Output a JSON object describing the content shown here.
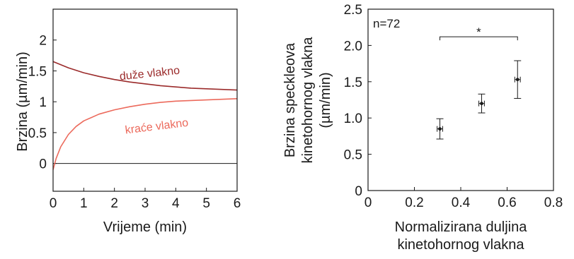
{
  "chart_data": [
    {
      "type": "line",
      "xlabel": "Vrijeme (min)",
      "ylabel": "Brzina (µm/min)",
      "xlim": [
        0,
        6
      ],
      "ylim": [
        -0.45,
        2.5
      ],
      "xticks": [
        "0",
        "1",
        "2",
        "3",
        "4",
        "5",
        "6"
      ],
      "xtick_values": [
        0,
        1,
        2,
        3,
        4,
        5,
        6
      ],
      "yticks": [
        "0",
        "0.5",
        "1",
        "1.5",
        "2"
      ],
      "ytick_values": [
        0,
        0.5,
        1,
        1.5,
        2
      ],
      "zero_line": true,
      "grid": false,
      "series": [
        {
          "name": "duže vlakno",
          "color": "#9b2b2b",
          "x": [
            0,
            0.5,
            1,
            1.5,
            2,
            2.5,
            3,
            3.5,
            4,
            4.5,
            5,
            5.5,
            6
          ],
          "values": [
            1.65,
            1.55,
            1.47,
            1.41,
            1.36,
            1.32,
            1.29,
            1.26,
            1.24,
            1.22,
            1.21,
            1.2,
            1.19
          ]
        },
        {
          "name": "kraće vlakno",
          "color": "#ec6a5c",
          "x": [
            0,
            0.1,
            0.25,
            0.5,
            0.75,
            1,
            1.5,
            2,
            2.5,
            3,
            3.5,
            4,
            4.5,
            5,
            5.5,
            6
          ],
          "values": [
            -0.1,
            0.08,
            0.27,
            0.47,
            0.6,
            0.69,
            0.8,
            0.87,
            0.92,
            0.96,
            0.99,
            1.01,
            1.02,
            1.03,
            1.04,
            1.05
          ]
        }
      ]
    },
    {
      "type": "scatter",
      "xlabel": "Normalizirana duljina kinetohornog vlakna",
      "xlabel_lines": [
        "Normalizirana duljina",
        "kinetohornog vlakna"
      ],
      "ylabel": "Brzina speckleova kinetohornog vlakna (µm/min)",
      "ylabel_lines": [
        "Brzina speckleova",
        "kinetohornog vlakna",
        "(µm/min)"
      ],
      "xlim": [
        0,
        0.8
      ],
      "ylim": [
        0,
        2.5
      ],
      "xticks": [
        "0",
        "0.2",
        "0.4",
        "0.6",
        "0.8"
      ],
      "xtick_values": [
        0,
        0.2,
        0.4,
        0.6,
        0.8
      ],
      "yticks": [
        "0",
        "0.5",
        "1.0",
        "1.5",
        "2.0",
        "2.5"
      ],
      "ytick_values": [
        0,
        0.5,
        1.0,
        1.5,
        2.0,
        2.5
      ],
      "grid": false,
      "annotation": "n=72",
      "significance": {
        "label": "*",
        "x1": 0.31,
        "x2": 0.645,
        "y": 2.12
      },
      "points": [
        {
          "x": 0.31,
          "y": 0.85,
          "yerr": 0.14,
          "xerr": 0.012
        },
        {
          "x": 0.49,
          "y": 1.2,
          "yerr": 0.13,
          "xerr": 0.012
        },
        {
          "x": 0.645,
          "y": 1.53,
          "yerr": 0.26,
          "xerr": 0.012
        }
      ]
    }
  ]
}
